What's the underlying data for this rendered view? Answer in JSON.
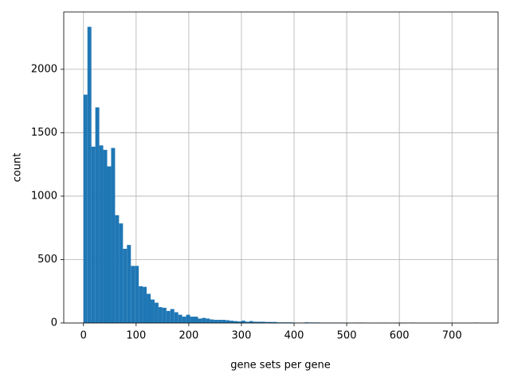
{
  "chart_data": {
    "type": "histogram",
    "xlabel": "gene sets per gene",
    "ylabel": "count",
    "color": "#1f77b4",
    "grid": true,
    "bins": [
      0,
      7.5,
      15,
      22.5,
      30,
      37.5,
      45,
      52.5,
      60,
      67.5,
      75,
      82.5,
      90,
      97.5,
      105,
      112.5,
      120,
      127.5,
      135,
      142.5,
      150,
      157.5,
      165,
      172.5,
      180,
      187.5,
      195,
      202.5,
      210,
      217.5,
      225,
      232.5,
      240,
      247.5,
      255,
      262.5,
      270,
      277.5,
      285,
      292.5,
      300,
      307.5,
      315,
      322.5,
      330,
      337.5,
      345,
      352.5,
      360,
      367.5,
      375,
      382.5,
      390,
      397.5,
      405,
      412.5,
      420,
      427.5,
      435,
      442.5,
      450,
      457.5,
      465,
      472.5,
      480,
      487.5,
      495,
      502.5,
      510,
      517.5,
      525,
      532.5,
      540,
      547.5,
      555,
      562.5,
      570,
      577.5,
      585,
      592.5,
      600,
      607.5,
      615,
      622.5,
      630,
      637.5,
      645,
      652.5,
      660,
      667.5,
      675,
      682.5,
      690,
      697.5,
      705,
      712.5,
      720,
      727.5,
      735,
      742.5,
      750
    ],
    "counts": [
      1800,
      2335,
      1390,
      1700,
      1400,
      1365,
      1235,
      1380,
      850,
      785,
      585,
      615,
      450,
      450,
      290,
      285,
      230,
      185,
      160,
      125,
      120,
      95,
      110,
      85,
      65,
      50,
      65,
      50,
      50,
      35,
      40,
      35,
      28,
      25,
      25,
      25,
      22,
      18,
      15,
      12,
      18,
      10,
      15,
      10,
      10,
      10,
      8,
      8,
      8,
      5,
      5,
      5,
      5,
      3,
      3,
      2,
      5,
      4,
      4,
      4,
      3,
      3,
      3,
      3,
      3,
      3,
      3,
      2,
      1,
      3,
      3,
      1,
      0,
      0,
      0,
      1,
      2,
      0,
      0,
      3,
      2,
      1,
      0,
      3,
      0,
      0,
      0,
      0,
      0,
      0,
      0,
      0,
      0,
      0,
      0,
      0,
      0,
      0,
      0,
      3
    ],
    "xlim": [
      -37.5,
      787.5
    ],
    "ylim": [
      0,
      2452
    ],
    "xticks": [
      0,
      100,
      200,
      300,
      400,
      500,
      600,
      700
    ],
    "yticks": [
      0,
      500,
      1000,
      1500,
      2000
    ]
  }
}
